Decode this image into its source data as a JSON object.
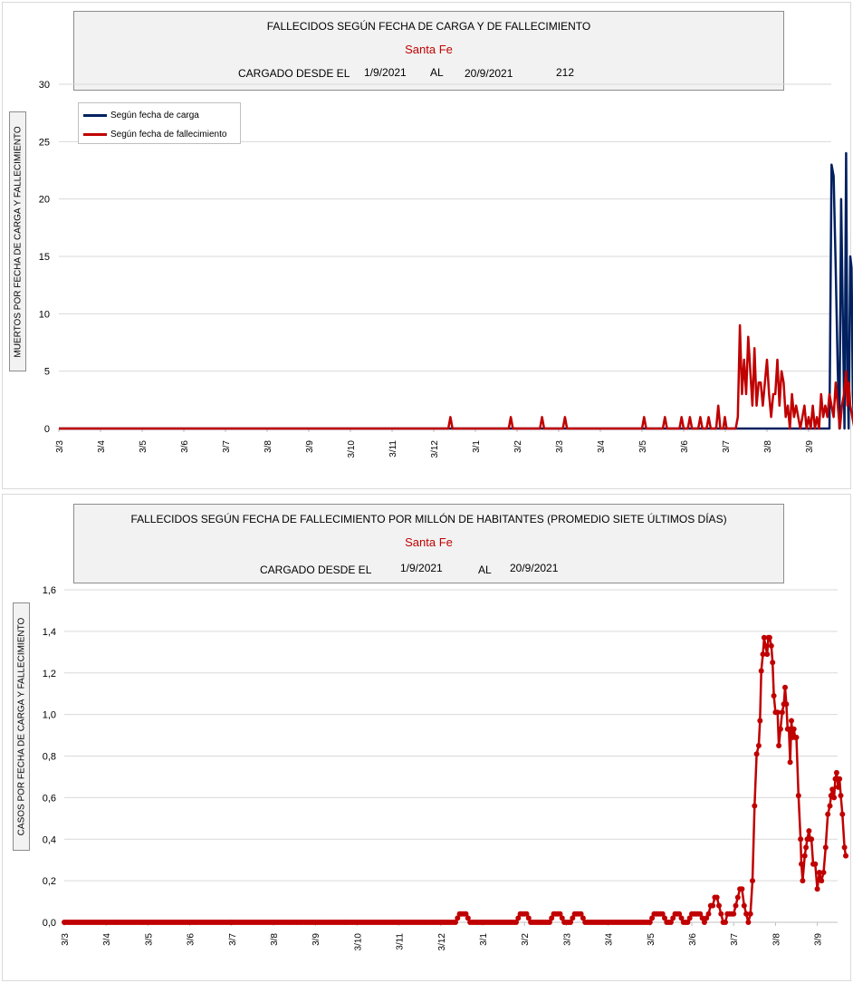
{
  "chart1": {
    "title": "FALLECIDOS SEGÚN FECHA DE CARGA Y DE FALLECIMIENTO",
    "subtitle": "Santa Fe",
    "loaded_label": "CARGADO DESDE EL",
    "date_from": "1/9/2021",
    "to_label": "AL",
    "date_to": "20/9/2021",
    "total": "212",
    "ylabel": "MUERTOS POR FECHA DE CARGA Y FALLECIMIENTO",
    "legend": [
      "Según fecha de carga",
      "Según fecha de fallecimiento"
    ]
  },
  "chart2": {
    "title": "FALLECIDOS SEGÚN FECHA DE FALLECIMIENTO POR MILLÓN DE HABITANTES (PROMEDIO SIETE ÚLTIMOS DÍAS)",
    "subtitle": "Santa Fe",
    "loaded_label": "CARGADO DESDE EL",
    "date_from": "1/9/2021",
    "to_label": "AL",
    "date_to": "20/9/2021",
    "ylabel": "CASOS POR FECHA DE CARGA  Y FALLECIMIENTO"
  },
  "chart_data": [
    {
      "type": "line",
      "title": "FALLECIDOS SEGÚN FECHA DE CARGA Y DE FALLECIMIENTO",
      "ylabel": "MUERTOS POR FECHA DE CARGA Y FALLECIMIENTO",
      "ylim": [
        0,
        30
      ],
      "yticks": [
        0,
        5,
        10,
        15,
        20,
        25,
        30
      ],
      "ytick_labels": [
        "0",
        "5",
        "10",
        "15",
        "20",
        "25",
        "30"
      ],
      "xticks": [
        "3/3",
        "3/4",
        "3/5",
        "3/6",
        "3/7",
        "3/8",
        "3/9",
        "3/10",
        "3/11",
        "3/12",
        "3/1",
        "3/2",
        "3/3",
        "3/4",
        "3/5",
        "3/6",
        "3/7",
        "3/8",
        "3/9"
      ],
      "legend_position": "top-left",
      "grid": true,
      "series": [
        {
          "name": "Según fecha de carga",
          "color": "#002060",
          "points": [
            [
              0,
              0
            ],
            [
              18.5,
              0
            ],
            [
              18.55,
              23
            ],
            [
              18.6,
              22
            ],
            [
              18.65,
              14
            ],
            [
              18.7,
              5
            ],
            [
              18.74,
              0
            ],
            [
              18.78,
              20
            ],
            [
              18.82,
              10
            ],
            [
              18.86,
              0
            ],
            [
              18.9,
              24
            ],
            [
              18.93,
              5
            ],
            [
              18.96,
              0
            ],
            [
              19.0,
              15
            ],
            [
              19.03,
              14
            ],
            [
              19.06,
              3
            ],
            [
              19.1,
              0
            ],
            [
              19.14,
              14
            ],
            [
              19.17,
              1
            ]
          ]
        },
        {
          "name": "Según fecha de fallecimiento",
          "color": "#c00000",
          "points": [
            [
              0,
              0
            ],
            [
              9.35,
              0
            ],
            [
              9.4,
              1
            ],
            [
              9.45,
              0
            ],
            [
              10.8,
              0
            ],
            [
              10.85,
              1
            ],
            [
              10.9,
              0
            ],
            [
              11.55,
              0
            ],
            [
              11.6,
              1
            ],
            [
              11.65,
              0
            ],
            [
              12.1,
              0
            ],
            [
              12.15,
              1
            ],
            [
              12.2,
              0
            ],
            [
              14.0,
              0
            ],
            [
              14.05,
              1
            ],
            [
              14.1,
              0
            ],
            [
              14.5,
              0
            ],
            [
              14.55,
              1
            ],
            [
              14.6,
              0
            ],
            [
              14.9,
              0
            ],
            [
              14.95,
              1
            ],
            [
              15.0,
              0
            ],
            [
              15.1,
              0
            ],
            [
              15.15,
              1
            ],
            [
              15.2,
              0
            ],
            [
              15.35,
              0
            ],
            [
              15.4,
              1
            ],
            [
              15.45,
              0
            ],
            [
              15.55,
              0
            ],
            [
              15.6,
              1
            ],
            [
              15.65,
              0
            ],
            [
              15.78,
              0
            ],
            [
              15.83,
              2
            ],
            [
              15.88,
              0
            ],
            [
              15.95,
              0
            ],
            [
              15.99,
              1
            ],
            [
              16.03,
              0
            ],
            [
              16.25,
              0
            ],
            [
              16.3,
              1
            ],
            [
              16.35,
              9
            ],
            [
              16.4,
              3
            ],
            [
              16.45,
              6
            ],
            [
              16.5,
              3
            ],
            [
              16.55,
              8
            ],
            [
              16.6,
              5
            ],
            [
              16.65,
              2
            ],
            [
              16.7,
              7
            ],
            [
              16.75,
              2
            ],
            [
              16.8,
              4
            ],
            [
              16.85,
              4
            ],
            [
              16.9,
              2
            ],
            [
              16.95,
              4
            ],
            [
              17.0,
              6
            ],
            [
              17.05,
              3
            ],
            [
              17.1,
              1
            ],
            [
              17.15,
              3
            ],
            [
              17.2,
              3
            ],
            [
              17.25,
              6
            ],
            [
              17.3,
              2
            ],
            [
              17.35,
              5
            ],
            [
              17.4,
              4
            ],
            [
              17.45,
              1
            ],
            [
              17.5,
              2
            ],
            [
              17.55,
              0
            ],
            [
              17.6,
              3
            ],
            [
              17.65,
              1
            ],
            [
              17.7,
              2
            ],
            [
              17.75,
              1
            ],
            [
              17.8,
              0
            ],
            [
              17.85,
              1
            ],
            [
              17.9,
              2
            ],
            [
              17.95,
              0
            ],
            [
              18.0,
              1
            ],
            [
              18.05,
              0
            ],
            [
              18.1,
              2
            ],
            [
              18.15,
              0
            ],
            [
              18.2,
              1
            ],
            [
              18.25,
              0
            ],
            [
              18.3,
              3
            ],
            [
              18.35,
              1
            ],
            [
              18.4,
              2
            ],
            [
              18.45,
              1
            ],
            [
              18.5,
              3
            ],
            [
              18.55,
              2
            ],
            [
              18.6,
              1
            ],
            [
              18.65,
              4
            ],
            [
              18.7,
              2
            ],
            [
              18.75,
              0
            ],
            [
              18.8,
              2
            ],
            [
              18.85,
              3
            ],
            [
              18.9,
              5
            ],
            [
              18.93,
              2
            ],
            [
              18.96,
              4
            ],
            [
              19.0,
              2
            ],
            [
              19.05,
              1
            ],
            [
              19.1,
              0
            ],
            [
              19.14,
              1
            ],
            [
              19.17,
              1
            ]
          ]
        }
      ]
    },
    {
      "type": "line",
      "title": "FALLECIDOS SEGÚN FECHA DE FALLECIMIENTO POR MILLÓN DE HABITANTES (PROMEDIO SIETE ÚLTIMOS DÍAS)",
      "ylabel": "CASOS POR FECHA DE CARGA  Y FALLECIMIENTO",
      "ylim": [
        0,
        1.6
      ],
      "yticks": [
        0,
        0.2,
        0.4,
        0.6,
        0.8,
        1.0,
        1.2,
        1.4,
        1.6
      ],
      "ytick_labels": [
        "0,0",
        "0,2",
        "0,4",
        "0,6",
        "0,8",
        "1,0",
        "1,2",
        "1,4",
        "1,6"
      ],
      "xticks": [
        "3/3",
        "3/4",
        "3/5",
        "3/6",
        "3/7",
        "3/8",
        "3/9",
        "3/10",
        "3/11",
        "3/12",
        "3/1",
        "3/2",
        "3/3",
        "3/4",
        "3/5",
        "3/6",
        "3/7",
        "3/8",
        "3/9"
      ],
      "grid": true,
      "series": [
        {
          "name": "",
          "color": "#c00000",
          "markers": true,
          "points": [
            [
              0,
              0
            ],
            [
              9.35,
              0
            ],
            [
              9.45,
              0.04
            ],
            [
              9.6,
              0.04
            ],
            [
              9.7,
              0
            ],
            [
              10.8,
              0
            ],
            [
              10.9,
              0.04
            ],
            [
              11.05,
              0.04
            ],
            [
              11.15,
              0
            ],
            [
              11.6,
              0
            ],
            [
              11.7,
              0.04
            ],
            [
              11.85,
              0.04
            ],
            [
              11.95,
              0
            ],
            [
              12.1,
              0
            ],
            [
              12.2,
              0.04
            ],
            [
              12.35,
              0.04
            ],
            [
              12.45,
              0
            ],
            [
              14.0,
              0
            ],
            [
              14.1,
              0.04
            ],
            [
              14.3,
              0.04
            ],
            [
              14.4,
              0
            ],
            [
              14.5,
              0
            ],
            [
              14.6,
              0.04
            ],
            [
              14.7,
              0.04
            ],
            [
              14.8,
              0
            ],
            [
              14.9,
              0
            ],
            [
              15.0,
              0.04
            ],
            [
              15.2,
              0.04
            ],
            [
              15.3,
              0
            ],
            [
              15.4,
              0.04
            ],
            [
              15.45,
              0.08
            ],
            [
              15.5,
              0.08
            ],
            [
              15.55,
              0.12
            ],
            [
              15.6,
              0.12
            ],
            [
              15.65,
              0.08
            ],
            [
              15.7,
              0.04
            ],
            [
              15.75,
              0
            ],
            [
              15.8,
              0
            ],
            [
              15.85,
              0.04
            ],
            [
              15.9,
              0.04
            ],
            [
              15.95,
              0.04
            ],
            [
              16.0,
              0.04
            ],
            [
              16.05,
              0.08
            ],
            [
              16.1,
              0.12
            ],
            [
              16.15,
              0.16
            ],
            [
              16.2,
              0.16
            ],
            [
              16.25,
              0.08
            ],
            [
              16.3,
              0.04
            ],
            [
              16.35,
              0
            ],
            [
              16.4,
              0.04
            ],
            [
              16.45,
              0.2
            ],
            [
              16.5,
              0.56
            ],
            [
              16.55,
              0.81
            ],
            [
              16.6,
              0.85
            ],
            [
              16.63,
              0.97
            ],
            [
              16.66,
              1.21
            ],
            [
              16.7,
              1.29
            ],
            [
              16.73,
              1.37
            ],
            [
              16.76,
              1.33
            ],
            [
              16.8,
              1.29
            ],
            [
              16.83,
              1.37
            ],
            [
              16.86,
              1.37
            ],
            [
              16.9,
              1.33
            ],
            [
              16.93,
              1.25
            ],
            [
              16.96,
              1.09
            ],
            [
              17.0,
              1.01
            ],
            [
              17.05,
              1.01
            ],
            [
              17.08,
              0.85
            ],
            [
              17.12,
              0.93
            ],
            [
              17.16,
              1.01
            ],
            [
              17.2,
              1.05
            ],
            [
              17.23,
              1.13
            ],
            [
              17.26,
              1.05
            ],
            [
              17.29,
              0.93
            ],
            [
              17.32,
              0.93
            ],
            [
              17.35,
              0.77
            ],
            [
              17.38,
              0.97
            ],
            [
              17.41,
              0.89
            ],
            [
              17.44,
              0.93
            ],
            [
              17.47,
              0.89
            ],
            [
              17.5,
              0.89
            ],
            [
              17.55,
              0.61
            ],
            [
              17.6,
              0.4
            ],
            [
              17.62,
              0.28
            ],
            [
              17.65,
              0.2
            ],
            [
              17.7,
              0.32
            ],
            [
              17.73,
              0.36
            ],
            [
              17.76,
              0.4
            ],
            [
              17.8,
              0.44
            ],
            [
              17.83,
              0.4
            ],
            [
              17.86,
              0.4
            ],
            [
              17.9,
              0.28
            ],
            [
              17.95,
              0.28
            ],
            [
              18.0,
              0.16
            ],
            [
              18.05,
              0.24
            ],
            [
              18.1,
              0.2
            ],
            [
              18.15,
              0.24
            ],
            [
              18.2,
              0.36
            ],
            [
              18.25,
              0.52
            ],
            [
              18.3,
              0.56
            ],
            [
              18.33,
              0.61
            ],
            [
              18.36,
              0.64
            ],
            [
              18.4,
              0.6
            ],
            [
              18.43,
              0.69
            ],
            [
              18.46,
              0.72
            ],
            [
              18.5,
              0.65
            ],
            [
              18.53,
              0.69
            ],
            [
              18.56,
              0.61
            ],
            [
              18.6,
              0.52
            ],
            [
              18.65,
              0.36
            ],
            [
              18.68,
              0.32
            ]
          ]
        }
      ]
    }
  ]
}
